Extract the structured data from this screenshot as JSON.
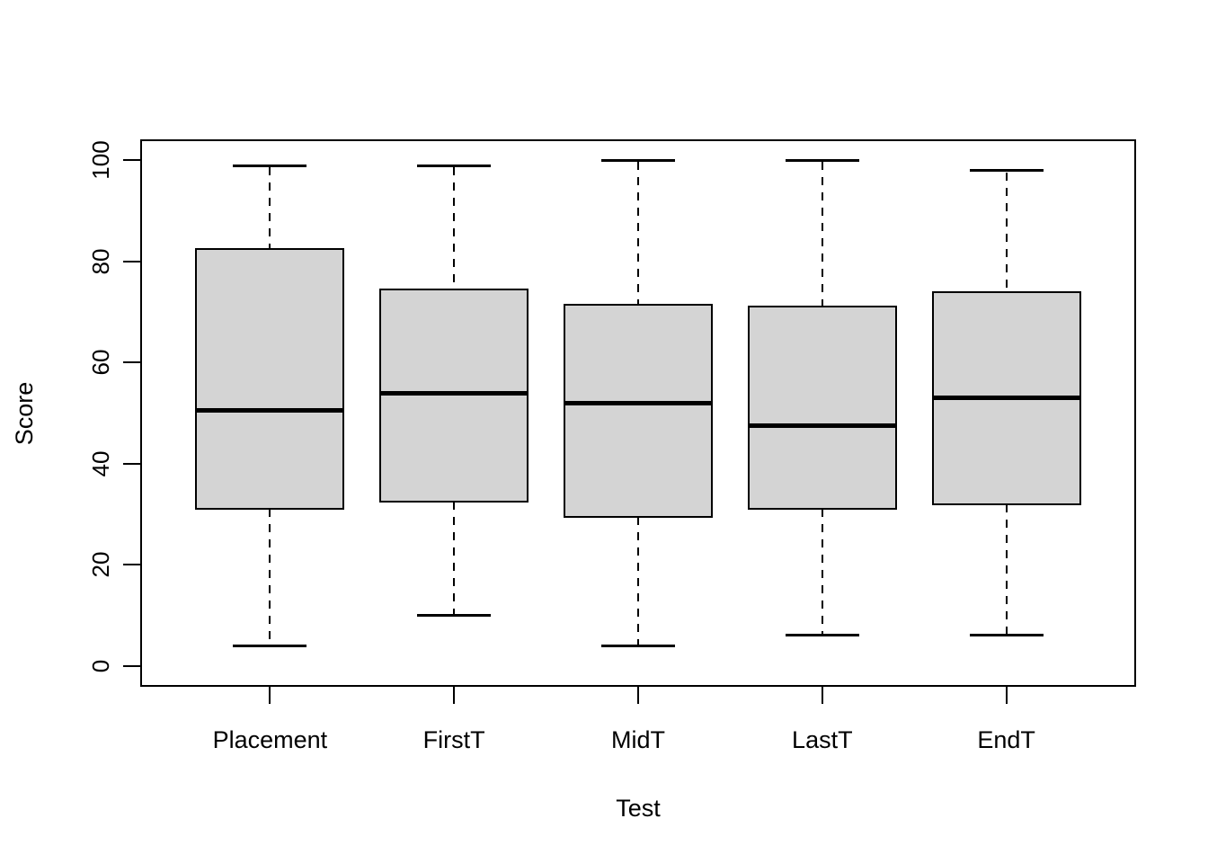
{
  "figure": {
    "background": "#FFFFFF",
    "line_color": "#000000",
    "box_fill": "#D4D4D4"
  },
  "chart_data": {
    "type": "boxplot",
    "title": "",
    "xlabel": "Test",
    "ylabel": "Score",
    "ylim": [
      0,
      100
    ],
    "yticks": [
      0,
      20,
      40,
      60,
      80,
      100
    ],
    "grid": false,
    "legend": null,
    "categories": [
      "Placement",
      "FirstT",
      "MidT",
      "LastT",
      "EndT"
    ],
    "series": [
      {
        "name": "Placement",
        "min": 4,
        "q1": 31,
        "median": 50.5,
        "q3": 82.5,
        "max": 99
      },
      {
        "name": "FirstT",
        "min": 10,
        "q1": 32.5,
        "median": 54,
        "q3": 74.5,
        "max": 99
      },
      {
        "name": "MidT",
        "min": 4,
        "q1": 29.5,
        "median": 52,
        "q3": 71.5,
        "max": 100
      },
      {
        "name": "LastT",
        "min": 6,
        "q1": 31,
        "median": 47.5,
        "q3": 71,
        "max": 100
      },
      {
        "name": "EndT",
        "min": 6,
        "q1": 32,
        "median": 53,
        "q3": 74,
        "max": 98
      }
    ]
  }
}
